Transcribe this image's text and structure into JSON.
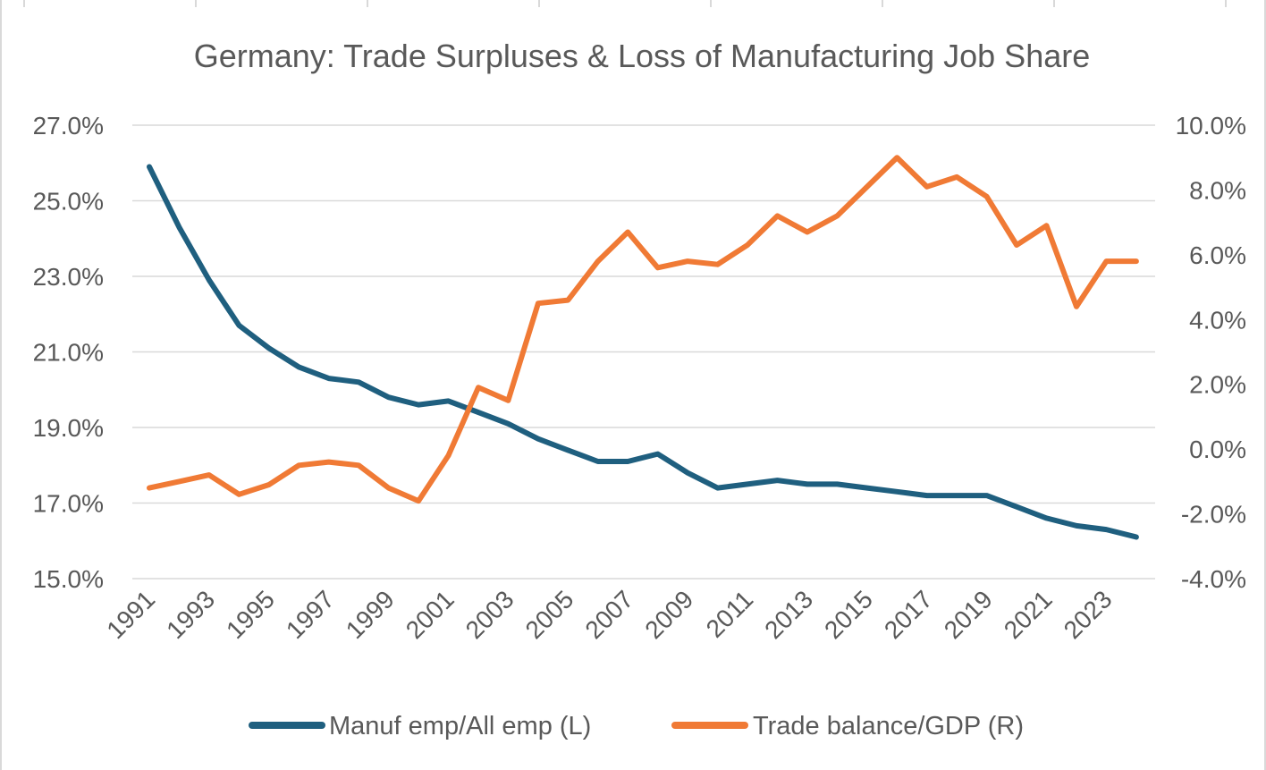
{
  "chart_data": {
    "type": "line",
    "title": "Germany: Trade Surpluses & Loss of Manufacturing Job Share",
    "x": [
      1991,
      1992,
      1993,
      1994,
      1995,
      1996,
      1997,
      1998,
      1999,
      2000,
      2001,
      2002,
      2003,
      2004,
      2005,
      2006,
      2007,
      2008,
      2009,
      2010,
      2011,
      2012,
      2013,
      2014,
      2015,
      2016,
      2017,
      2018,
      2019,
      2020,
      2021,
      2022,
      2023,
      2024
    ],
    "x_tick_labels": [
      "1991",
      "1993",
      "1995",
      "1997",
      "1999",
      "2001",
      "2003",
      "2005",
      "2007",
      "2009",
      "2011",
      "2013",
      "2015",
      "2017",
      "2019",
      "2021",
      "2023"
    ],
    "y_left": {
      "ylim": [
        15.0,
        27.0
      ],
      "tick_labels": [
        "15.0%",
        "17.0%",
        "19.0%",
        "21.0%",
        "23.0%",
        "25.0%",
        "27.0%"
      ],
      "gridlines": true
    },
    "y_right": {
      "ylim": [
        -4.0,
        10.0
      ],
      "tick_labels": [
        "-4.0%",
        "-2.0%",
        "0.0%",
        "2.0%",
        "4.0%",
        "6.0%",
        "8.0%",
        "10.0%"
      ]
    },
    "legend_position": "bottom",
    "series": [
      {
        "name": "Manuf emp/All emp (L)",
        "axis": "left",
        "color": "#1f5f7f",
        "values": [
          25.9,
          24.3,
          22.9,
          21.7,
          21.1,
          20.6,
          20.3,
          20.2,
          19.8,
          19.6,
          19.7,
          19.4,
          19.1,
          18.7,
          18.4,
          18.1,
          18.1,
          18.3,
          17.8,
          17.4,
          17.5,
          17.6,
          17.5,
          17.5,
          17.4,
          17.3,
          17.2,
          17.2,
          17.2,
          16.9,
          16.6,
          16.4,
          16.3,
          16.1
        ]
      },
      {
        "name": "Trade balance/GDP (R)",
        "axis": "right",
        "color": "#f07a35",
        "values": [
          -1.2,
          -1.0,
          -0.8,
          -1.4,
          -1.1,
          -0.5,
          -0.4,
          -0.5,
          -1.2,
          -1.6,
          -0.2,
          1.9,
          1.5,
          4.5,
          4.6,
          5.8,
          6.7,
          5.6,
          5.8,
          5.7,
          6.3,
          7.2,
          6.7,
          7.2,
          8.1,
          9.0,
          8.1,
          8.4,
          7.8,
          6.3,
          6.9,
          4.4,
          5.8,
          5.8
        ]
      }
    ]
  }
}
